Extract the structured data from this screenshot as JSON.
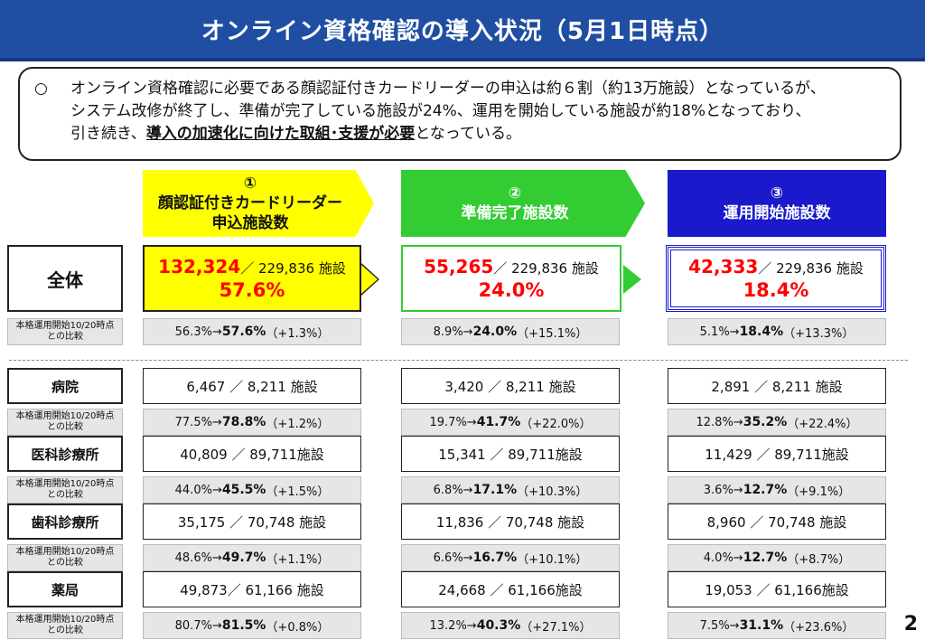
{
  "title": "オンライン資格確認の導入状況（5月1日時点）",
  "summary": {
    "bullet": "○",
    "line1": "オンライン資格確認に必要である顔認証付きカードリーダーの申込は約６割（約13万施設）となっているが、",
    "line2": "システム改修が終了し、準備が完了している施設が24%、運用を開始している施設が約18%となっており、",
    "line3_prefix": "引き続き、",
    "line3_emphasis": "導入の加速化に向けた取組･支援が必要",
    "line3_suffix": "となっている。"
  },
  "columns": [
    {
      "number": "①",
      "title_line1": "顔認証付きカードリーダー",
      "title_line2": "申込施設数",
      "color": "#ffff00"
    },
    {
      "number": "②",
      "title_line1": "準備完了施設数",
      "title_line2": "",
      "color": "#33cc33"
    },
    {
      "number": "③",
      "title_line1": "運用開始施設数",
      "title_line2": "",
      "color": "#1a1acc"
    }
  ],
  "total": {
    "label": "全体",
    "cmp_label_line1": "本格運用開始10/20時点",
    "cmp_label_line2": "との比較",
    "cells": [
      {
        "count": "132,324",
        "rest": "／ 229,836 施設",
        "pct": "57.6%",
        "cmp_before": "56.3%→",
        "cmp_after": "57.6%",
        "cmp_diff": "（+1.3%）"
      },
      {
        "count": "55,265",
        "rest": "／ 229,836 施設",
        "pct": "24.0%",
        "cmp_before": "8.9%→",
        "cmp_after": "24.0%",
        "cmp_diff": "（+15.1%）"
      },
      {
        "count": "42,333",
        "rest": "／ 229,836 施設",
        "pct": "18.4%",
        "cmp_before": "5.1%→",
        "cmp_after": "18.4%",
        "cmp_diff": "（+13.3%）"
      }
    ]
  },
  "categories": [
    {
      "label": "病院",
      "cmp_label_line1": "本格運用開始10/20時点",
      "cmp_label_line2": "との比較",
      "cells": [
        {
          "value": "6,467 ／ 8,211 施設",
          "cmp_before": "77.5%→",
          "cmp_after": "78.8%",
          "cmp_diff": "（+1.2%）"
        },
        {
          "value": "3,420 ／ 8,211 施設",
          "cmp_before": "19.7%→",
          "cmp_after": "41.7%",
          "cmp_diff": "（+22.0%）"
        },
        {
          "value": "2,891 ／ 8,211 施設",
          "cmp_before": "12.8%→",
          "cmp_after": "35.2%",
          "cmp_diff": "（+22.4%）"
        }
      ]
    },
    {
      "label": "医科診療所",
      "cmp_label_line1": "本格運用開始10/20時点",
      "cmp_label_line2": "との比較",
      "cells": [
        {
          "value": "40,809 ／ 89,711施設",
          "cmp_before": "44.0%→",
          "cmp_after": "45.5%",
          "cmp_diff": "（+1.5%）"
        },
        {
          "value": "15,341 ／ 89,711施設",
          "cmp_before": "6.8%→",
          "cmp_after": "17.1%",
          "cmp_diff": "（+10.3%）"
        },
        {
          "value": "11,429 ／ 89,711施設",
          "cmp_before": "3.6%→",
          "cmp_after": "12.7%",
          "cmp_diff": "（+9.1%）"
        }
      ]
    },
    {
      "label": "歯科診療所",
      "cmp_label_line1": "本格運用開始10/20時点",
      "cmp_label_line2": "との比較",
      "cells": [
        {
          "value": "35,175 ／ 70,748 施設",
          "cmp_before": "48.6%→",
          "cmp_after": "49.7%",
          "cmp_diff": "（+1.1%）"
        },
        {
          "value": "11,836 ／ 70,748 施設",
          "cmp_before": "6.6%→",
          "cmp_after": "16.7%",
          "cmp_diff": "（+10.1%）"
        },
        {
          "value": "8,960 ／ 70,748 施設",
          "cmp_before": "4.0%→",
          "cmp_after": "12.7%",
          "cmp_diff": "（+8.7%）"
        }
      ]
    },
    {
      "label": "薬局",
      "cmp_label_line1": "本格運用開始10/20時点",
      "cmp_label_line2": "との比較",
      "cells": [
        {
          "value": "49,873／ 61,166 施設",
          "cmp_before": "80.7%→",
          "cmp_after": "81.5%",
          "cmp_diff": "（+0.8%）"
        },
        {
          "value": "24,668 ／ 61,166施設",
          "cmp_before": "13.2%→",
          "cmp_after": "40.3%",
          "cmp_diff": "（+27.1%）"
        },
        {
          "value": "19,053 ／ 61,166施設",
          "cmp_before": "7.5%→",
          "cmp_after": "31.1%",
          "cmp_diff": "（+23.6%）"
        }
      ]
    }
  ],
  "page_number": "2"
}
